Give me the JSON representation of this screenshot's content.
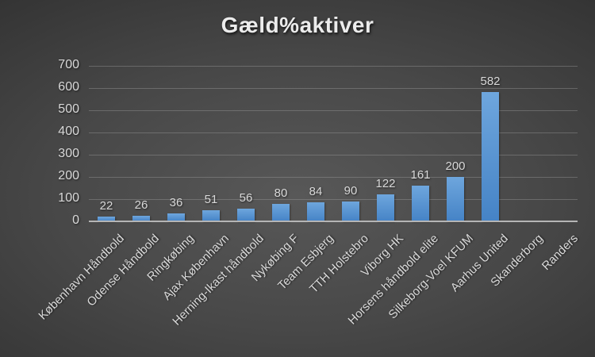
{
  "chart_data": {
    "type": "bar",
    "title": "Gæld%aktiver",
    "categories": [
      "København Håndbold",
      "Odense Håndbold",
      "Ringkøbing",
      "Ajax København",
      "Herning-Ikast håndbold",
      "Nykøbing F",
      "Team Esbjerg",
      "TTH Holstebro",
      "Viborg HK",
      "Horsens håndbold elite",
      "Silkeborg-Voel KFUM",
      "Aarhus United",
      "Skanderborg",
      "Randers"
    ],
    "values": [
      22,
      26,
      36,
      51,
      56,
      80,
      84,
      90,
      122,
      161,
      200,
      582,
      null,
      null
    ],
    "data_labels": [
      "22",
      "26",
      "36",
      "51",
      "56",
      "80",
      "84",
      "90",
      "122",
      "161",
      "200",
      "582",
      "",
      ""
    ],
    "xlabel": "",
    "ylabel": "",
    "ylim": [
      0,
      700
    ],
    "yticks": [
      0,
      100,
      200,
      300,
      400,
      500,
      600,
      700
    ],
    "grid": true,
    "legend": "none"
  },
  "colors": {
    "bar_top": "#6ea6dd",
    "bar_bottom": "#4583c6",
    "gridline": "rgba(160,160,160,0.40)",
    "axis_line": "#b5b5b5",
    "tick_text": "#d9d9d9",
    "title_text": "#ececec"
  }
}
